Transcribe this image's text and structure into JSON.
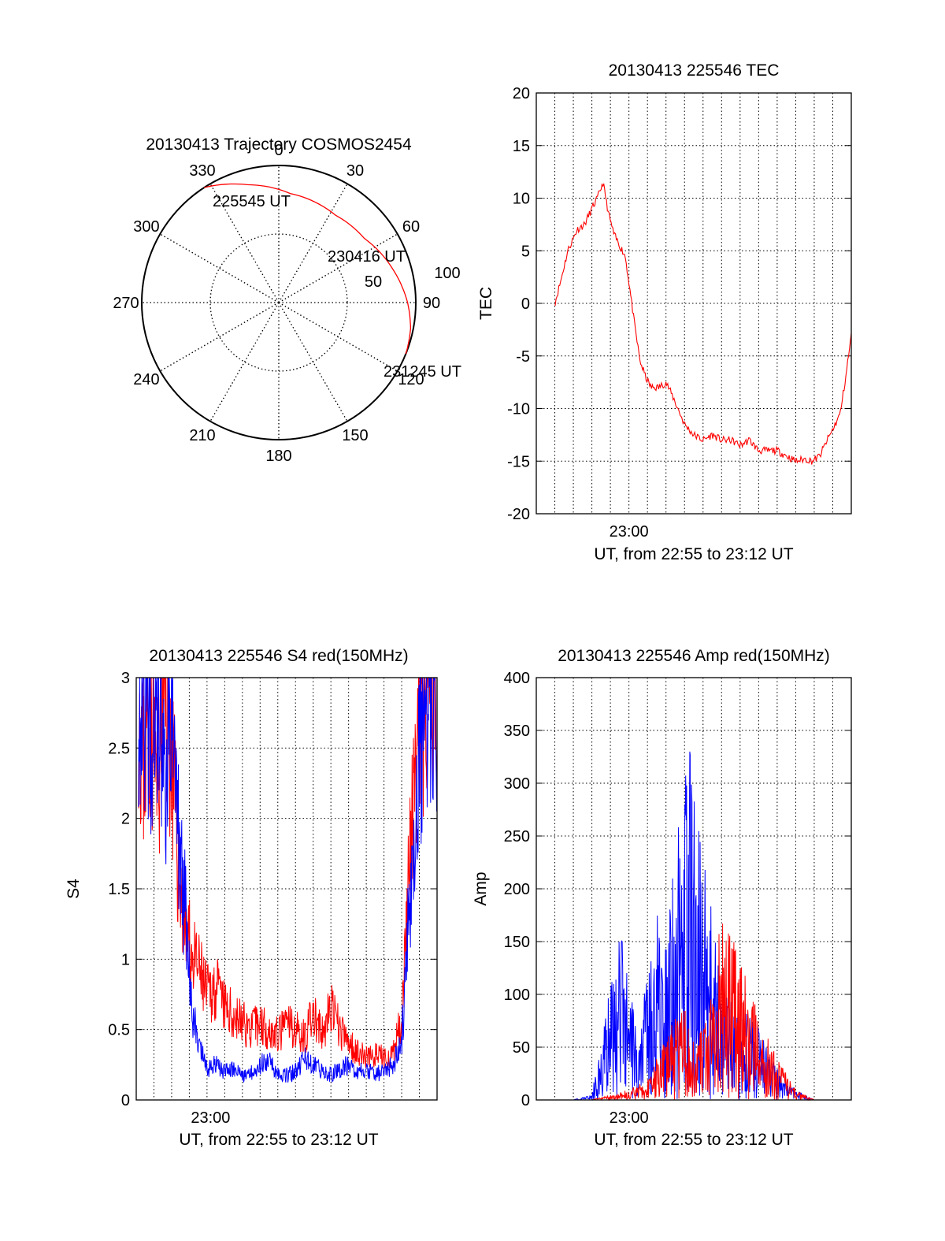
{
  "colors": {
    "red": "#ff0000",
    "blue": "#0000ff",
    "axis": "#000000",
    "grid": "#000000"
  },
  "chart_data": [
    {
      "id": "trajectory",
      "type": "polar",
      "title": "20130413 Trajectory COSMOS2454",
      "angle_labels": [
        "0",
        "30",
        "60",
        "90",
        "120",
        "150",
        "180",
        "210",
        "240",
        "270",
        "300",
        "330"
      ],
      "radial_labels": [
        "50",
        "100"
      ],
      "rmax": 100,
      "grid": true,
      "track": {
        "points": [
          {
            "az": 327,
            "r": 100
          },
          {
            "az": 345,
            "r": 89
          },
          {
            "az": 6,
            "r": 80
          },
          {
            "az": 33,
            "r": 76
          },
          {
            "az": 53,
            "r": 78
          },
          {
            "az": 72,
            "r": 86
          },
          {
            "az": 90,
            "r": 94
          },
          {
            "az": 101,
            "r": 98
          },
          {
            "az": 112,
            "r": 100
          }
        ]
      },
      "annotations": [
        {
          "text": "225545 UT",
          "at": {
            "az": 327,
            "r": 100
          }
        },
        {
          "text": "230416 UT",
          "at": {
            "az": 53,
            "r": 78
          }
        },
        {
          "text": "231245 UT",
          "at": {
            "az": 112,
            "r": 100
          }
        }
      ]
    },
    {
      "id": "tec",
      "type": "line",
      "title": "20130413 225546 TEC",
      "xlabel": "UT, from 22:55 to 23:12 UT",
      "ylabel": "TEC",
      "xlim": [
        0,
        17
      ],
      "ylim": [
        -20,
        20
      ],
      "yticks": [
        -20,
        -15,
        -10,
        -5,
        0,
        5,
        10,
        15,
        20
      ],
      "xtick_labels": [
        {
          "x": 5,
          "label": "23:00"
        }
      ],
      "grid": true,
      "series": [
        {
          "color": "#ff0000",
          "x": [
            1.0,
            1.3,
            1.7,
            2.2,
            2.6,
            3.0,
            3.3,
            3.6,
            3.9,
            4.2,
            4.5,
            4.8,
            5.0,
            5.3,
            5.6,
            5.9,
            6.2,
            6.6,
            7.0,
            7.4,
            8.0,
            8.5,
            9.0,
            9.5,
            10.0,
            10.5,
            11.0,
            11.5,
            12.0,
            12.5,
            13.0,
            13.5,
            14.0,
            14.5,
            14.9,
            15.3,
            15.7,
            16.0,
            16.4,
            16.7,
            17.0
          ],
          "y": [
            0.0,
            2.0,
            5.0,
            7.0,
            7.5,
            9.0,
            10.0,
            11.5,
            8.5,
            6.5,
            5.5,
            4.5,
            2.0,
            -2.0,
            -5.5,
            -7.0,
            -8.0,
            -8.0,
            -7.5,
            -9.0,
            -11.5,
            -12.5,
            -13.0,
            -12.5,
            -13.0,
            -13.0,
            -13.5,
            -13.0,
            -14.0,
            -14.0,
            -14.0,
            -14.5,
            -15.0,
            -14.8,
            -15.0,
            -14.5,
            -13.0,
            -12.0,
            -10.5,
            -7.0,
            -3.0
          ]
        }
      ]
    },
    {
      "id": "s4",
      "type": "line",
      "title": "20130413 225546 S4 red(150MHz)",
      "xlabel": "UT, from 22:55 to 23:12 UT",
      "ylabel": "S4",
      "xlim": [
        0,
        17
      ],
      "ylim": [
        0,
        3
      ],
      "yticks": [
        0,
        0.5,
        1,
        1.5,
        2,
        2.5,
        3
      ],
      "ytick_labels": [
        "0",
        "0.5",
        "1",
        "1.5",
        "2",
        "2.5",
        "3"
      ],
      "xtick_labels": [
        {
          "x": 4.2,
          "label": "23:00"
        }
      ],
      "grid": true,
      "series": [
        {
          "color": "#ff0000",
          "x": [
            0.1,
            0.4,
            0.8,
            1.2,
            1.6,
            2.0,
            2.4,
            2.8,
            3.2,
            3.6,
            4.0,
            4.5,
            5.0,
            5.5,
            6.0,
            6.5,
            7.0,
            7.5,
            8.0,
            8.5,
            9.0,
            9.5,
            10.0,
            10.5,
            11.0,
            11.5,
            12.0,
            12.5,
            13.0,
            13.5,
            14.0,
            14.5,
            15.0,
            15.5,
            16.0,
            16.5,
            17.0
          ],
          "y": [
            3.0,
            2.4,
            2.8,
            2.2,
            3.0,
            2.5,
            1.6,
            1.2,
            1.0,
            0.9,
            0.75,
            0.8,
            0.65,
            0.6,
            0.55,
            0.5,
            0.55,
            0.5,
            0.45,
            0.55,
            0.5,
            0.45,
            0.6,
            0.45,
            0.65,
            0.5,
            0.4,
            0.35,
            0.3,
            0.32,
            0.3,
            0.3,
            0.6,
            1.8,
            2.5,
            3.0,
            2.8
          ]
        },
        {
          "color": "#0000ff",
          "x": [
            0.1,
            0.4,
            0.8,
            1.2,
            1.6,
            2.0,
            2.4,
            2.8,
            3.2,
            3.6,
            4.0,
            4.5,
            5.0,
            5.5,
            6.0,
            6.5,
            7.0,
            7.5,
            8.0,
            8.5,
            9.0,
            9.5,
            10.0,
            10.5,
            11.0,
            11.5,
            12.0,
            12.5,
            13.0,
            13.5,
            14.0,
            14.5,
            15.0,
            15.5,
            16.0,
            16.5,
            17.0
          ],
          "y": [
            2.8,
            3.0,
            2.6,
            3.0,
            2.2,
            2.8,
            1.8,
            1.3,
            0.6,
            0.35,
            0.22,
            0.25,
            0.2,
            0.22,
            0.18,
            0.2,
            0.25,
            0.28,
            0.2,
            0.17,
            0.2,
            0.3,
            0.25,
            0.2,
            0.18,
            0.22,
            0.25,
            0.2,
            0.22,
            0.18,
            0.2,
            0.25,
            0.4,
            1.5,
            2.4,
            2.9,
            2.7
          ]
        }
      ]
    },
    {
      "id": "amp",
      "type": "line",
      "title": "20130413 225546 Amp red(150MHz)",
      "xlabel": "UT, from 22:55 to 23:12 UT",
      "ylabel": "Amp",
      "xlim": [
        0,
        17
      ],
      "ylim": [
        0,
        400
      ],
      "yticks": [
        0,
        50,
        100,
        150,
        200,
        250,
        300,
        350,
        400
      ],
      "xtick_labels": [
        {
          "x": 5,
          "label": "23:00"
        }
      ],
      "grid": true,
      "series": [
        {
          "color": "#0000ff",
          "x": [
            0.0,
            2.0,
            3.0,
            3.5,
            4.0,
            4.5,
            5.0,
            5.5,
            6.0,
            6.5,
            7.0,
            7.5,
            8.0,
            8.3,
            8.6,
            9.0,
            9.5,
            10.0,
            10.5,
            11.0,
            11.5,
            12.0,
            12.5,
            13.0,
            13.5,
            14.0,
            15.0,
            17.0
          ],
          "y": [
            0,
            0,
            5,
            60,
            110,
            160,
            140,
            40,
            130,
            200,
            140,
            250,
            310,
            340,
            290,
            230,
            180,
            120,
            100,
            90,
            80,
            70,
            50,
            30,
            20,
            10,
            0,
            0
          ]
        },
        {
          "color": "#ff0000",
          "x": [
            0.0,
            3.0,
            4.0,
            5.0,
            5.5,
            6.0,
            6.5,
            7.0,
            7.5,
            8.0,
            8.5,
            9.0,
            9.5,
            10.0,
            10.5,
            11.0,
            11.5,
            12.0,
            12.5,
            13.0,
            13.5,
            14.0,
            15.0,
            17.0
          ],
          "y": [
            0,
            0,
            5,
            10,
            15,
            20,
            40,
            60,
            80,
            90,
            60,
            70,
            100,
            180,
            160,
            130,
            110,
            80,
            60,
            40,
            25,
            10,
            0,
            0
          ]
        }
      ]
    }
  ]
}
